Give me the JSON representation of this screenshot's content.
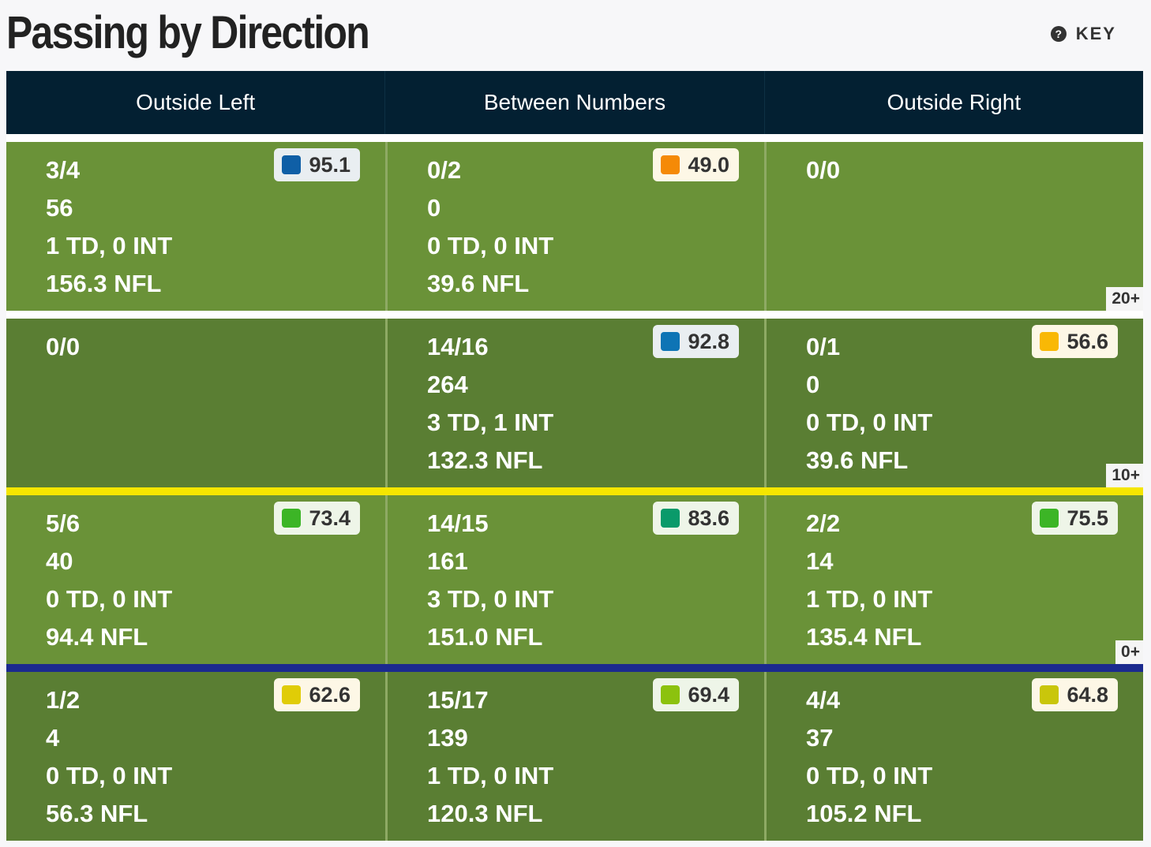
{
  "title": "Passing by Direction",
  "key_label": "KEY",
  "columns": [
    "Outside Left",
    "Between Numbers",
    "Outside Right"
  ],
  "colors": {
    "header_bg": "#032032",
    "field_light": "#6a9238",
    "field_dark": "#5a7e33",
    "separator_20": "#ffffff",
    "separator_10": "#ffffff",
    "separator_line_to_gain": "#f5e600",
    "separator_line_of_scrimmage": "#1b2a8f"
  },
  "rows": [
    {
      "yard_label": "20+",
      "cells": [
        {
          "comp_att": "3/4",
          "yards": "56",
          "td_int": "1 TD, 0 INT",
          "rating": "156.3 NFL",
          "grade": "95.1",
          "grade_color": "#0f5fa6"
        },
        {
          "comp_att": "0/2",
          "yards": "0",
          "td_int": "0 TD, 0 INT",
          "rating": "39.6 NFL",
          "grade": "49.0",
          "grade_color": "#f58a07"
        },
        {
          "comp_att": "0/0",
          "yards": "",
          "td_int": "",
          "rating": "",
          "grade": "",
          "grade_color": ""
        }
      ]
    },
    {
      "yard_label": "10+",
      "cells": [
        {
          "comp_att": "0/0",
          "yards": "",
          "td_int": "",
          "rating": "",
          "grade": "",
          "grade_color": ""
        },
        {
          "comp_att": "14/16",
          "yards": "264",
          "td_int": "3 TD, 1 INT",
          "rating": "132.3 NFL",
          "grade": "92.8",
          "grade_color": "#0e74b5"
        },
        {
          "comp_att": "0/1",
          "yards": "0",
          "td_int": "0 TD, 0 INT",
          "rating": "39.6 NFL",
          "grade": "56.6",
          "grade_color": "#f9b805"
        }
      ]
    },
    {
      "yard_label": "0+",
      "cells": [
        {
          "comp_att": "5/6",
          "yards": "40",
          "td_int": "0 TD, 0 INT",
          "rating": "94.4 NFL",
          "grade": "73.4",
          "grade_color": "#3cb526"
        },
        {
          "comp_att": "14/15",
          "yards": "161",
          "td_int": "3 TD, 0 INT",
          "rating": "151.0 NFL",
          "grade": "83.6",
          "grade_color": "#0a9a6a"
        },
        {
          "comp_att": "2/2",
          "yards": "14",
          "td_int": "1 TD, 0 INT",
          "rating": "135.4 NFL",
          "grade": "75.5",
          "grade_color": "#3cb526"
        }
      ]
    },
    {
      "yard_label": "",
      "cells": [
        {
          "comp_att": "1/2",
          "yards": "4",
          "td_int": "0 TD, 0 INT",
          "rating": "56.3 NFL",
          "grade": "62.6",
          "grade_color": "#e0cc07"
        },
        {
          "comp_att": "15/17",
          "yards": "139",
          "td_int": "1 TD, 0 INT",
          "rating": "120.3 NFL",
          "grade": "69.4",
          "grade_color": "#8cc20e"
        },
        {
          "comp_att": "4/4",
          "yards": "37",
          "td_int": "0 TD, 0 INT",
          "rating": "105.2 NFL",
          "grade": "64.8",
          "grade_color": "#c9c60b"
        }
      ]
    }
  ]
}
